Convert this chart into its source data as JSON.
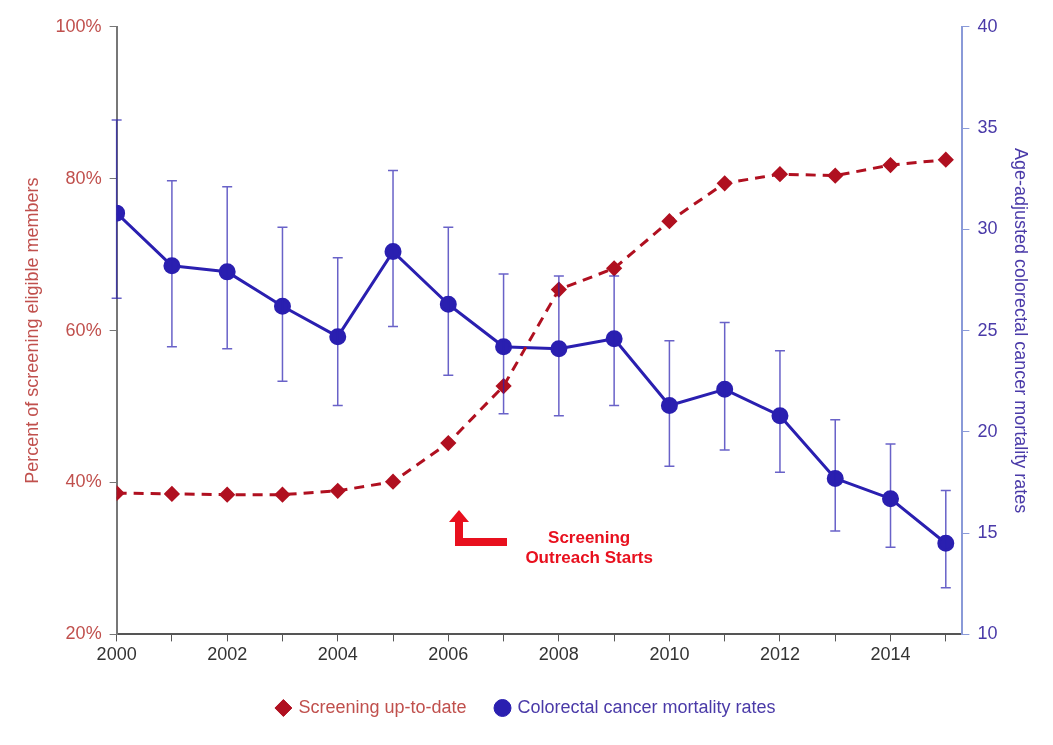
{
  "chart_data": {
    "type": "line",
    "ylabel": "Percent of screening eligible members",
    "y2label": "Age-adjusted colorectal cancer mortality rates",
    "x": [
      2000,
      2001,
      2002,
      2003,
      2004,
      2005,
      2006,
      2007,
      2008,
      2009,
      2010,
      2011,
      2012,
      2013,
      2014,
      2015
    ],
    "xlim": [
      2000,
      2015.3
    ],
    "xticks": [
      2000,
      {
        "value": 2001,
        "label": null
      },
      2002,
      {
        "value": 2003,
        "label": null
      },
      2004,
      {
        "value": 2005,
        "label": null
      },
      2006,
      {
        "value": 2007,
        "label": null
      },
      2008,
      {
        "value": 2009,
        "label": null
      },
      2010,
      {
        "value": 2011,
        "label": null
      },
      2012,
      {
        "value": 2013,
        "label": null
      },
      2014,
      {
        "value": 2015,
        "label": null
      }
    ],
    "ylim": [
      20,
      100
    ],
    "yticks": [
      {
        "value": 20,
        "label": "20%"
      },
      {
        "value": 40,
        "label": "40%"
      },
      {
        "value": 60,
        "label": "60%"
      },
      {
        "value": 80,
        "label": "80%"
      },
      {
        "value": 100,
        "label": "100%"
      }
    ],
    "y2lim": [
      10,
      40
    ],
    "y2ticks": [
      10,
      15,
      20,
      25,
      30,
      35,
      40
    ],
    "grid": false,
    "legend": "bottom",
    "series": [
      {
        "name": "Screening up-to-date",
        "color": "#b01020",
        "marker": "diamond",
        "line_style": "dashed",
        "values": [
          38.6,
          38.5,
          38.4,
          38.4,
          38.9,
          40.1,
          45.2,
          52.7,
          65.4,
          68.2,
          74.4,
          79.4,
          80.6,
          80.4,
          81.8,
          82.5
        ]
      },
      {
        "name": "Colorectal cancer mortality rates",
        "color": "#2a1fb0",
        "marker": "circle",
        "line_style": "solid",
        "axis": "y2",
        "values": [
          30.8,
          28.2,
          27.9,
          26.2,
          24.7,
          28.9,
          26.3,
          24.2,
          24.1,
          24.6,
          21.3,
          22.1,
          20.8,
          17.7,
          16.7,
          14.5
        ],
        "errors": [
          [
            26.6,
            35.4
          ],
          [
            24.2,
            32.4
          ],
          [
            24.1,
            32.1
          ],
          [
            22.5,
            30.1
          ],
          [
            21.3,
            28.6
          ],
          [
            25.2,
            32.9
          ],
          [
            22.8,
            30.1
          ],
          [
            20.9,
            27.8
          ],
          [
            20.8,
            27.7
          ],
          [
            21.3,
            27.7
          ],
          [
            18.3,
            24.5
          ],
          [
            19.1,
            25.4
          ],
          [
            18.0,
            24.0
          ],
          [
            15.1,
            20.6
          ],
          [
            14.3,
            19.4
          ],
          [
            12.3,
            17.1
          ]
        ]
      }
    ],
    "annotations": [
      "Screening Outreach Starts"
    ]
  }
}
